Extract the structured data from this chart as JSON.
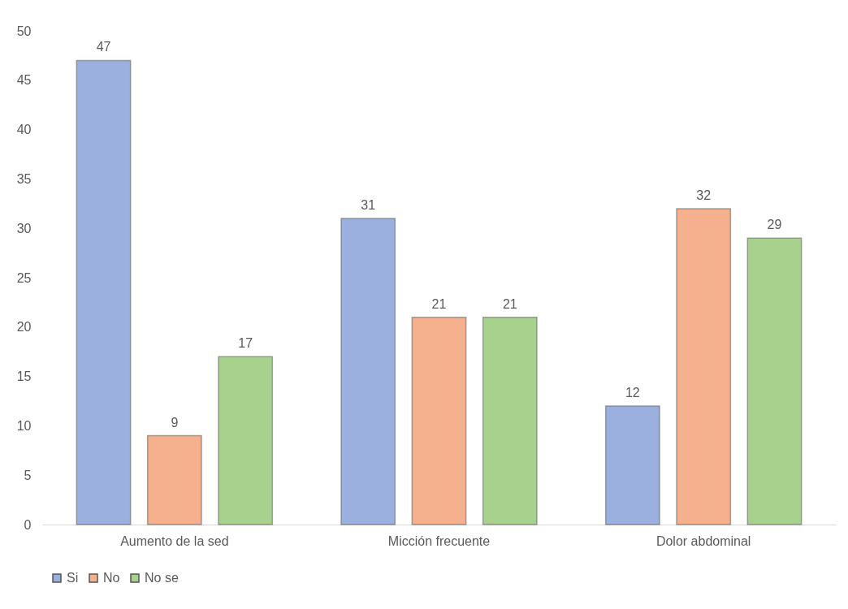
{
  "chart_data": {
    "type": "bar",
    "categories": [
      "Aumento de la sed",
      "Micción frecuente",
      "Dolor abdominal"
    ],
    "series": [
      {
        "name": "Si",
        "color": "#9bb0df",
        "values": [
          47,
          31,
          12
        ]
      },
      {
        "name": "No",
        "color": "#f5b08e",
        "values": [
          9,
          21,
          32
        ]
      },
      {
        "name": "No se",
        "color": "#a9d18e",
        "values": [
          17,
          21,
          29
        ]
      }
    ],
    "ylim": [
      0,
      50
    ],
    "yticks": [
      0,
      5,
      10,
      15,
      20,
      25,
      30,
      35,
      40,
      45,
      50
    ],
    "grid": false,
    "legend": "bottom",
    "data_labels": true
  }
}
